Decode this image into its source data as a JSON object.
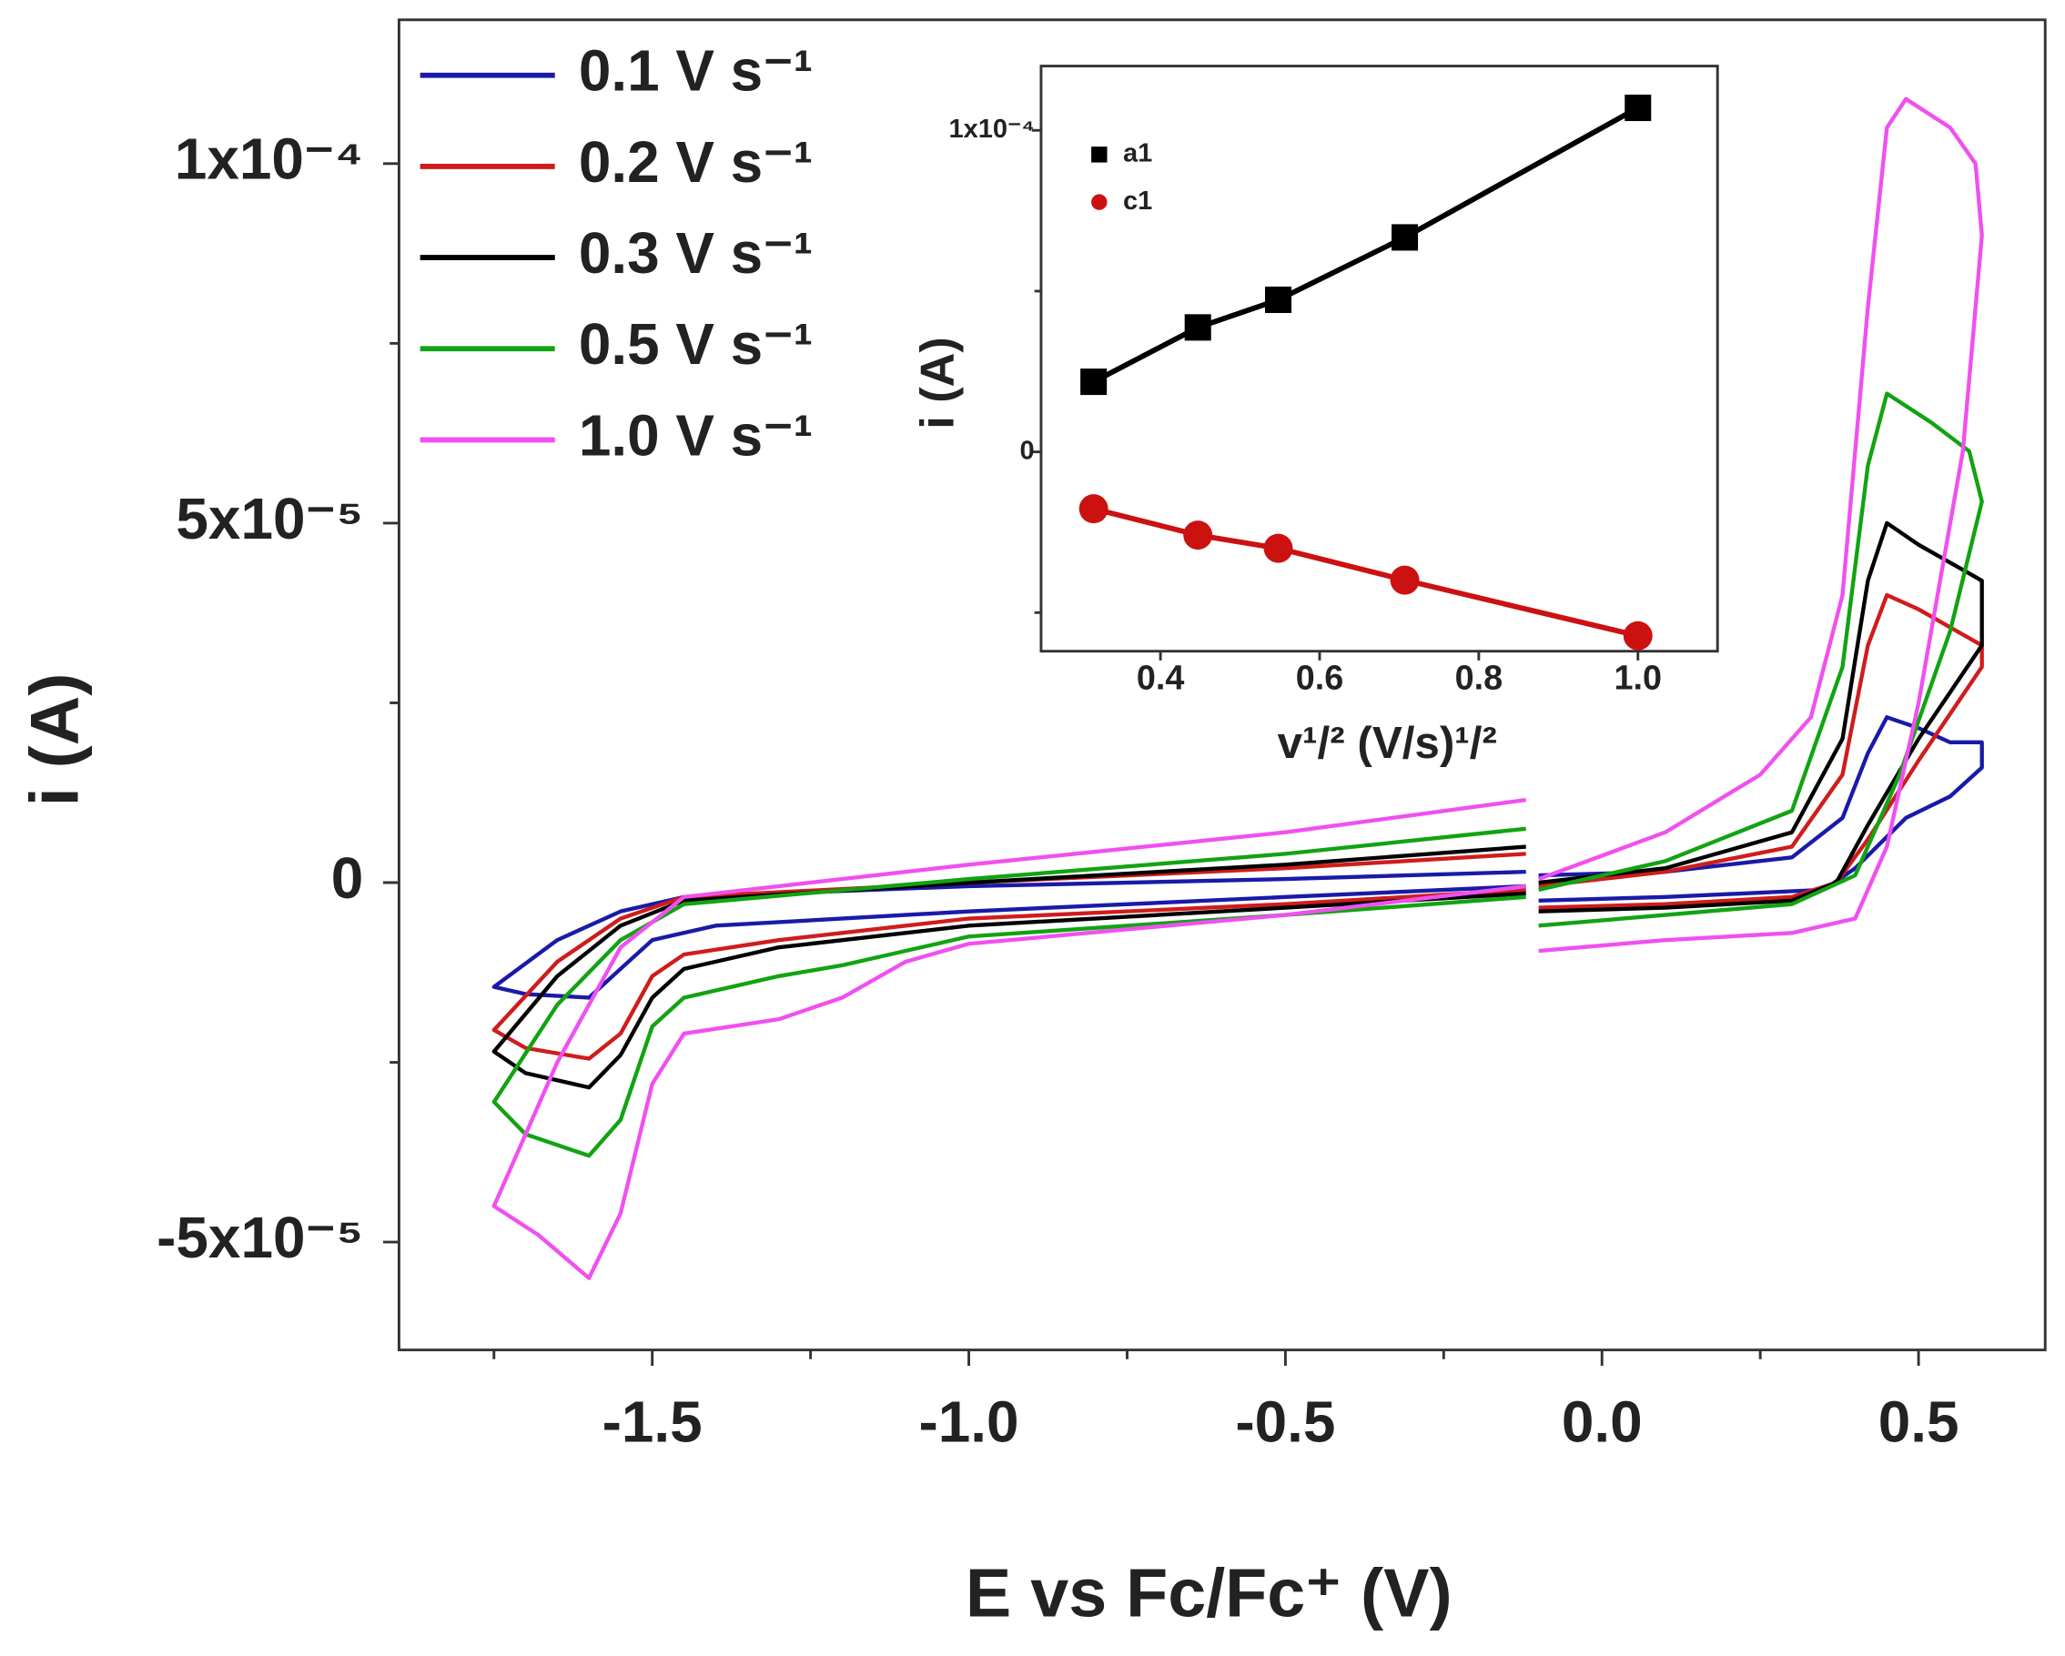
{
  "chart_data": [
    {
      "type": "line",
      "xlabel": "E vs Fc/Fc⁺ (V)",
      "ylabel": "i (A)",
      "xlim": [
        -1.9,
        0.7
      ],
      "xticks": [
        -1.5,
        -1.0,
        -0.5,
        0.0,
        0.5
      ],
      "xminorticks": [
        -1.75,
        -1.25,
        -0.75,
        -0.25,
        0.25
      ],
      "ylim": [
        -6.5e-05,
        0.00012
      ],
      "yticks": [
        {
          "value": -5e-05,
          "label": "-5x10⁻⁵"
        },
        0,
        {
          "value": 5e-05,
          "label": "5x10⁻⁵"
        },
        {
          "value": 0.0001,
          "label": "1x10⁻⁴"
        }
      ],
      "yminorticks": [
        -2.5e-05,
        2.5e-05,
        7.5e-05
      ],
      "legend": "upper left",
      "series": [
        {
          "name": "0.1 V s⁻¹",
          "color": "#1a1aa8",
          "x": [
            -0.12,
            -0.5,
            -1.0,
            -1.45,
            -1.55,
            -1.65,
            -1.75,
            -1.7,
            -1.6,
            -1.55,
            -1.5,
            -1.4,
            -1.0,
            -0.5,
            -0.12,
            null,
            -0.1,
            0.1,
            0.3,
            0.38,
            0.42,
            0.45,
            0.5,
            0.55,
            0.6,
            0.6,
            0.55,
            0.48,
            0.4,
            0.35,
            0.1,
            -0.1
          ],
          "values": [
            1.5e-06,
            5e-07,
            -5e-07,
            -2e-06,
            -4e-06,
            -8e-06,
            -1.45e-05,
            -1.55e-05,
            -1.6e-05,
            -1.2e-05,
            -8e-06,
            -6e-06,
            -4e-06,
            -2e-06,
            -5e-07,
            null,
            1e-06,
            1.5e-06,
            3.5e-06,
            9e-06,
            1.8e-05,
            2.3e-05,
            2.15e-05,
            1.95e-05,
            1.95e-05,
            1.6e-05,
            1.2e-05,
            9e-06,
            2e-06,
            -1e-06,
            -2e-06,
            -2.5e-06
          ]
        },
        {
          "name": "0.2 V s⁻¹",
          "color": "#d01c1c",
          "x": [
            -0.12,
            -0.5,
            -1.0,
            -1.45,
            -1.55,
            -1.65,
            -1.75,
            -1.7,
            -1.6,
            -1.55,
            -1.5,
            -1.45,
            -1.3,
            -1.0,
            -0.5,
            -0.12,
            null,
            -0.1,
            0.1,
            0.3,
            0.38,
            0.42,
            0.45,
            0.5,
            0.6,
            0.6,
            0.5,
            0.42,
            0.37,
            0.3,
            0.1,
            -0.1
          ],
          "values": [
            4e-06,
            2e-06,
            0.0,
            -2e-06,
            -5e-06,
            -1.1e-05,
            -2.05e-05,
            -2.3e-05,
            -2.45e-05,
            -2.1e-05,
            -1.3e-05,
            -1e-05,
            -8e-06,
            -5e-06,
            -3e-06,
            -1e-06,
            null,
            -5e-07,
            1.5e-06,
            5e-06,
            1.5e-05,
            3.3e-05,
            4e-05,
            3.8e-05,
            3.3e-05,
            3e-05,
            1.7e-05,
            6e-06,
            0.0,
            -2e-06,
            -3e-06,
            -3.5e-06
          ]
        },
        {
          "name": "0.3 V s⁻¹",
          "color": "#000000",
          "x": [
            -0.12,
            -0.5,
            -1.0,
            -1.45,
            -1.55,
            -1.65,
            -1.75,
            -1.7,
            -1.6,
            -1.55,
            -1.5,
            -1.45,
            -1.3,
            -1.0,
            -0.5,
            -0.12,
            null,
            -0.1,
            0.1,
            0.3,
            0.38,
            0.42,
            0.45,
            0.5,
            0.6,
            0.6,
            0.5,
            0.42,
            0.37,
            0.3,
            0.1,
            -0.1
          ],
          "values": [
            5e-06,
            2.5e-06,
            0.0,
            -2.5e-06,
            -6e-06,
            -1.3e-05,
            -2.35e-05,
            -2.65e-05,
            -2.85e-05,
            -2.4e-05,
            -1.6e-05,
            -1.2e-05,
            -9e-06,
            -6e-06,
            -3.5e-06,
            -1.5e-06,
            null,
            0.0,
            2e-06,
            7e-06,
            2e-05,
            4.2e-05,
            5e-05,
            4.7e-05,
            4.2e-05,
            3.3e-05,
            2e-05,
            8e-06,
            0.0,
            -2.5e-06,
            -3.5e-06,
            -4e-06
          ]
        },
        {
          "name": "0.5 V s⁻¹",
          "color": "#12a312",
          "x": [
            -0.12,
            -0.5,
            -1.0,
            -1.45,
            -1.55,
            -1.65,
            -1.75,
            -1.7,
            -1.6,
            -1.55,
            -1.5,
            -1.45,
            -1.3,
            -1.2,
            -1.0,
            -0.5,
            -0.12,
            null,
            -0.1,
            0.1,
            0.3,
            0.38,
            0.42,
            0.45,
            0.52,
            0.58,
            0.6,
            0.55,
            0.47,
            0.4,
            0.3,
            0.1,
            -0.1
          ],
          "values": [
            7.5e-06,
            4e-06,
            5e-07,
            -3e-06,
            -8e-06,
            -1.7e-05,
            -3.05e-05,
            -3.5e-05,
            -3.8e-05,
            -3.3e-05,
            -2e-05,
            -1.6e-05,
            -1.3e-05,
            -1.15e-05,
            -7.5e-06,
            -4.5e-06,
            -2e-06,
            null,
            -1e-06,
            3e-06,
            1e-05,
            3e-05,
            5.8e-05,
            6.8e-05,
            6.4e-05,
            6e-05,
            5.3e-05,
            3.5e-05,
            1.5e-05,
            1e-06,
            -3e-06,
            -4.5e-06,
            -6e-06
          ]
        },
        {
          "name": "1.0 V s⁻¹",
          "color": "#f050f0",
          "x": [
            -0.12,
            -0.5,
            -1.0,
            -1.45,
            -1.55,
            -1.65,
            -1.75,
            -1.68,
            -1.6,
            -1.55,
            -1.5,
            -1.45,
            -1.3,
            -1.2,
            -1.1,
            -1.0,
            -0.5,
            -0.12,
            null,
            -0.1,
            0.1,
            0.25,
            0.33,
            0.38,
            0.42,
            0.45,
            0.48,
            0.55,
            0.59,
            0.6,
            0.57,
            0.5,
            0.45,
            0.4,
            0.3,
            0.1,
            -0.1
          ],
          "values": [
            1.15e-05,
            7e-06,
            2.5e-06,
            -2e-06,
            -9e-06,
            -2.5e-05,
            -4.5e-05,
            -4.9e-05,
            -5.5e-05,
            -4.6e-05,
            -2.8e-05,
            -2.1e-05,
            -1.9e-05,
            -1.6e-05,
            -1.1e-05,
            -8.5e-06,
            -4.5e-06,
            -5e-07,
            null,
            5e-07,
            7e-06,
            1.5e-05,
            2.3e-05,
            4e-05,
            8e-05,
            0.000105,
            0.000109,
            0.000105,
            0.0001,
            9e-05,
            6e-05,
            2.5e-05,
            5e-06,
            -5e-06,
            -7e-06,
            -8e-06,
            -9.5e-06
          ]
        }
      ]
    },
    {
      "type": "line",
      "xlabel": "v¹/² (V/s)¹/²",
      "ylabel": "i (A)",
      "xlim": [
        0.25,
        1.1
      ],
      "xticks": [
        0.4,
        0.6,
        0.8,
        1.0
      ],
      "ylim": [
        -6.2e-05,
        0.00012
      ],
      "yticks": [
        0,
        {
          "value": 0.0001,
          "label": "1x10⁻⁴"
        }
      ],
      "yminorticks": [
        -5e-05,
        5e-05
      ],
      "legend": "upper left",
      "series": [
        {
          "name": "a1",
          "color": "#000000",
          "marker": "square",
          "x": [
            0.316,
            0.447,
            0.548,
            0.707,
            1.0
          ],
          "values": [
            2.18e-05,
            3.87e-05,
            4.73e-05,
            6.67e-05,
            0.000107
          ]
        },
        {
          "name": "c1",
          "color": "#cc1111",
          "marker": "circle",
          "x": [
            0.316,
            0.447,
            0.548,
            0.707,
            1.0
          ],
          "values": [
            -1.77e-05,
            -2.59e-05,
            -3e-05,
            -3.99e-05,
            -5.72e-05
          ]
        }
      ]
    }
  ]
}
